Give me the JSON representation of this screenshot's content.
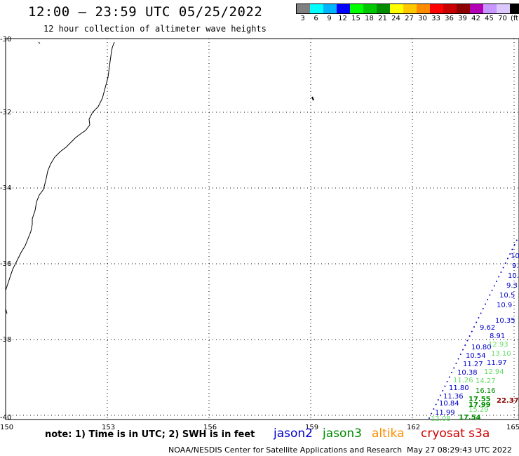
{
  "header": {
    "title": "12:00 – 23:59 UTC 05/25/2022",
    "subtitle": "12 hour collection of altimeter wave heights"
  },
  "legend": {
    "colors": [
      "#808080",
      "#00ffff",
      "#00b4ff",
      "#0000ff",
      "#00ff00",
      "#00c800",
      "#008c00",
      "#ffff00",
      "#ffc800",
      "#ff8c00",
      "#ff0000",
      "#c80000",
      "#8c0000",
      "#b400b4",
      "#c896ff",
      "#dcc8ff",
      "#000000"
    ],
    "labels": [
      "3",
      "6",
      "9",
      "12",
      "15",
      "18",
      "21",
      "24",
      "27",
      "30",
      "33",
      "36",
      "39",
      "42",
      "45",
      "70"
    ],
    "unit": "(ft)"
  },
  "axes": {
    "lat_labels": [
      "-30",
      "-32",
      "-34",
      "-36",
      "-38",
      "-40"
    ],
    "lon_labels": [
      "150",
      "153",
      "156",
      "159",
      "162",
      "165"
    ]
  },
  "note": "note: 1) Time is in UTC; 2) SWH is in feet",
  "satellites": [
    {
      "name": "jason2",
      "color": "#0000cc"
    },
    {
      "name": "jason3",
      "color": "#008c00"
    },
    {
      "name": "altika",
      "color": "#ff8c00"
    },
    {
      "name": "cryosat s3a",
      "color": "#cc0000"
    }
  ],
  "footer": {
    "credit": "NOAA/NESDIS Center for Satellite Applications and Research",
    "timestamp": "May 27 08:29:43 UTC 2022"
  },
  "wave_labels": [
    {
      "text": "10.",
      "color": "#0000cc"
    },
    {
      "text": "9.",
      "color": "#0000cc"
    },
    {
      "text": "10.",
      "color": "#0000cc"
    },
    {
      "text": "9.3",
      "color": "#0000cc"
    },
    {
      "text": "10.5",
      "color": "#0000cc"
    },
    {
      "text": "10.9",
      "color": "#0000cc"
    },
    {
      "text": "10.35",
      "color": "#0000cc"
    },
    {
      "text": "8.91",
      "color": "#0000cc"
    },
    {
      "text": "12.93",
      "color": "#66dd66"
    },
    {
      "text": "13.10",
      "color": "#66dd66"
    },
    {
      "text": "11.97",
      "color": "#0000cc"
    },
    {
      "text": "12.94",
      "color": "#66dd66"
    },
    {
      "text": "14.27",
      "color": "#66dd66"
    },
    {
      "text": "16.16",
      "color": "#008c00"
    },
    {
      "text": "17.55",
      "color": "#008c00"
    },
    {
      "text": "22.37",
      "color": "#8c0000"
    },
    {
      "text": "17.99",
      "color": "#008c00"
    },
    {
      "text": "15.29",
      "color": "#66dd66"
    },
    {
      "text": "17.54",
      "color": "#008c00"
    },
    {
      "text": "12.08",
      "color": "#66dd66"
    },
    {
      "text": "11.99",
      "color": "#0000cc"
    },
    {
      "text": "10.84",
      "color": "#0000cc"
    },
    {
      "text": "11.36",
      "color": "#0000cc"
    },
    {
      "text": "11.80",
      "color": "#0000cc"
    },
    {
      "text": "11.26",
      "color": "#66dd66"
    },
    {
      "text": "10.38",
      "color": "#0000cc"
    },
    {
      "text": "11.27",
      "color": "#0000cc"
    },
    {
      "text": "10.54",
      "color": "#0000cc"
    },
    {
      "text": "10.80",
      "color": "#0000cc"
    },
    {
      "text": "9.62",
      "color": "#0000cc"
    }
  ]
}
